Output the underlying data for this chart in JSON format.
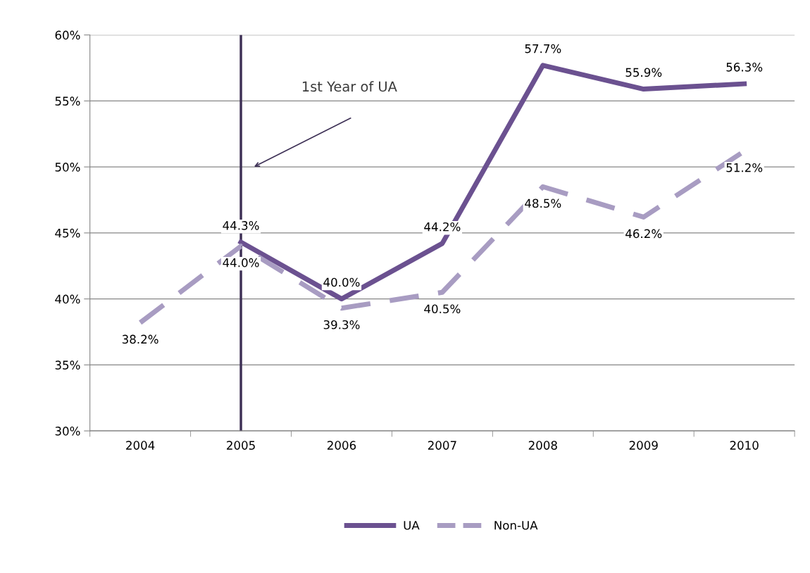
{
  "chart_data": {
    "type": "line",
    "categories": [
      "2004",
      "2005",
      "2006",
      "2007",
      "2008",
      "2009",
      "2010"
    ],
    "series": [
      {
        "name": "UA",
        "color": "#6b5190",
        "line_style": "solid",
        "values": [
          null,
          44.3,
          40.0,
          44.2,
          57.7,
          55.9,
          56.3
        ],
        "value_labels": [
          null,
          "44.3%",
          "40.0%",
          "44.2%",
          "57.7%",
          "55.9%",
          "56.3%"
        ]
      },
      {
        "name": "Non-UA",
        "color": "#a89cc2",
        "line_style": "dashed",
        "values": [
          38.2,
          44.0,
          39.3,
          40.5,
          48.5,
          46.2,
          51.2
        ],
        "value_labels": [
          "38.2%",
          "44.0%",
          "39.3%",
          "40.5%",
          "48.5%",
          "46.2%",
          "51.2%"
        ]
      }
    ],
    "ylim": [
      30,
      60
    ],
    "yticks": [
      {
        "value": 30,
        "label": "30%"
      },
      {
        "value": 35,
        "label": "35%"
      },
      {
        "value": 40,
        "label": "40%"
      },
      {
        "value": 45,
        "label": "45%"
      },
      {
        "value": 50,
        "label": "50%"
      },
      {
        "value": 55,
        "label": "55%"
      },
      {
        "value": 60,
        "label": "60%"
      }
    ],
    "grid": "y",
    "legend": "bottom",
    "marker": "none",
    "ref_lines": [
      {
        "axis": "x",
        "value": "2005",
        "color": "#3e3156",
        "line_style": "solid"
      }
    ],
    "annotations": [
      "1st Year of UA"
    ]
  }
}
